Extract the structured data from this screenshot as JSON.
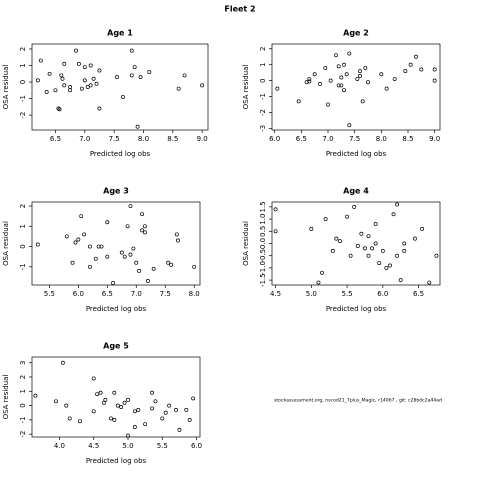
{
  "title": "Fleet 2",
  "footnote": "stockassessment.org, nscod21_7plus_Magic, r14067 , git: c28bdc2a44ad",
  "chart_data": [
    {
      "type": "scatter",
      "title": "Age 1",
      "xlabel": "Predicted log obs",
      "ylabel": "OSA residual",
      "xlim": [
        6.1,
        9.1
      ],
      "ylim": [
        -2.9,
        2.3
      ],
      "xticks": [
        6.5,
        {
          "value": 7,
          "label": "7.0"
        },
        7.5,
        {
          "value": 8,
          "label": "8.0"
        },
        8.5,
        {
          "value": 9,
          "label": "9.0"
        }
      ],
      "yticks": [
        -2,
        -1,
        0,
        1,
        2
      ],
      "x": [
        6.2,
        6.25,
        6.35,
        6.4,
        6.5,
        6.55,
        6.57,
        6.6,
        6.62,
        6.65,
        6.65,
        6.75,
        6.75,
        6.85,
        6.9,
        6.95,
        7.0,
        7.0,
        7.05,
        7.1,
        7.1,
        7.15,
        7.2,
        7.25,
        7.25,
        7.55,
        7.65,
        7.8,
        7.85,
        7.8,
        7.95,
        7.9,
        8.1,
        8.6,
        8.7,
        9.0
      ],
      "values": [
        0.1,
        1.3,
        -0.6,
        0.5,
        -0.5,
        -1.6,
        -1.65,
        0.4,
        0.2,
        1.1,
        -0.2,
        -0.3,
        -0.5,
        1.9,
        1.1,
        -0.4,
        0.9,
        0.1,
        -0.3,
        1.0,
        -0.2,
        0.2,
        -0.1,
        -1.6,
        0.7,
        0.3,
        -0.9,
        1.9,
        0.9,
        0.4,
        0.3,
        -2.7,
        0.6,
        -0.4,
        0.4,
        -0.2
      ]
    },
    {
      "type": "scatter",
      "title": "Age 2",
      "xlabel": "Predicted log obs",
      "ylabel": "OSA residual",
      "xlim": [
        5.95,
        9.1
      ],
      "ylim": [
        -3.1,
        2.3
      ],
      "xticks": [
        {
          "value": 6,
          "label": "6.0"
        },
        6.5,
        {
          "value": 7,
          "label": "7.0"
        },
        7.5,
        {
          "value": 8,
          "label": "8.0"
        },
        8.5,
        {
          "value": 9,
          "label": "9.0"
        }
      ],
      "yticks": [
        -3,
        -2,
        -1,
        0,
        1,
        2
      ],
      "x": [
        6.05,
        6.45,
        6.6,
        6.65,
        6.65,
        6.75,
        6.85,
        6.95,
        7.0,
        7.05,
        7.15,
        7.2,
        7.2,
        7.25,
        7.25,
        7.3,
        7.3,
        7.35,
        7.4,
        7.4,
        7.55,
        7.6,
        7.6,
        7.65,
        7.7,
        7.75,
        8.0,
        8.1,
        8.25,
        8.45,
        8.55,
        8.65,
        8.75,
        9.0,
        9.0
      ],
      "values": [
        -0.5,
        -1.3,
        -0.1,
        0.1,
        -0.05,
        0.4,
        -0.2,
        0.8,
        -1.5,
        0.0,
        1.6,
        0.9,
        -0.3,
        -0.3,
        0.2,
        1.0,
        -0.6,
        0.4,
        1.7,
        -2.8,
        0.1,
        0.6,
        0.3,
        -1.3,
        0.8,
        -0.1,
        0.4,
        -0.5,
        0.1,
        0.6,
        1.0,
        1.5,
        0.7,
        0.7,
        0.0
      ]
    },
    {
      "type": "scatter",
      "title": "Age 3",
      "xlabel": "Predicted log obs",
      "ylabel": "OSA residual",
      "xlim": [
        5.2,
        8.1
      ],
      "ylim": [
        -1.9,
        2.2
      ],
      "xticks": [
        5.5,
        {
          "value": 6,
          "label": "6.0"
        },
        6.5,
        {
          "value": 7,
          "label": "7.0"
        },
        7.5,
        {
          "value": 8,
          "label": "8.0"
        }
      ],
      "yticks": [
        -1,
        0,
        1,
        2
      ],
      "x": [
        5.3,
        5.8,
        5.9,
        5.95,
        6.0,
        6.05,
        6.1,
        6.2,
        6.2,
        6.3,
        6.35,
        6.4,
        6.5,
        6.5,
        6.6,
        6.75,
        6.8,
        6.85,
        6.9,
        6.9,
        6.95,
        7.0,
        7.05,
        7.1,
        7.1,
        7.15,
        7.15,
        7.2,
        7.3,
        7.55,
        7.6,
        7.7,
        7.72,
        8.0
      ],
      "values": [
        0.1,
        0.5,
        -0.8,
        0.2,
        0.35,
        1.5,
        0.6,
        -1.0,
        0.0,
        -0.6,
        0.0,
        0.0,
        -0.5,
        1.2,
        -1.8,
        -0.3,
        -0.5,
        1.0,
        -0.4,
        2.0,
        -0.1,
        -0.8,
        -1.2,
        1.6,
        0.8,
        1.0,
        0.7,
        -1.7,
        -1.1,
        -0.8,
        -0.9,
        0.6,
        0.3,
        -1.0
      ]
    },
    {
      "type": "scatter",
      "title": "Age 4",
      "xlabel": "Predicted log obs",
      "ylabel": "OSA residual",
      "xlim": [
        4.45,
        6.8
      ],
      "ylim": [
        -1.7,
        1.7
      ],
      "xticks": [
        4.5,
        {
          "value": 5,
          "label": "5.0"
        },
        5.5,
        {
          "value": 6,
          "label": "6.0"
        },
        6.5
      ],
      "yticks": [
        -1.5,
        {
          "value": -1,
          "label": "-1.0"
        },
        -0.5,
        {
          "value": 0,
          "label": "0.0"
        },
        0.5,
        {
          "value": 1,
          "label": "1.0"
        },
        1.5
      ],
      "x": [
        4.5,
        4.5,
        5.0,
        5.1,
        5.15,
        5.2,
        5.3,
        5.35,
        5.4,
        5.5,
        5.55,
        5.6,
        5.65,
        5.7,
        5.75,
        5.8,
        5.8,
        5.85,
        5.9,
        5.9,
        5.95,
        6.0,
        6.05,
        6.1,
        6.15,
        6.2,
        6.2,
        6.25,
        6.3,
        6.3,
        6.45,
        6.55,
        6.65,
        6.75
      ],
      "values": [
        1.4,
        0.5,
        0.6,
        -1.6,
        -1.2,
        1.0,
        -0.3,
        0.2,
        0.1,
        1.1,
        -0.5,
        1.5,
        -0.1,
        0.4,
        -0.2,
        -0.5,
        0.3,
        -0.2,
        0.8,
        0.0,
        -0.8,
        -0.3,
        -1.0,
        -0.9,
        1.2,
        1.6,
        -0.5,
        -1.5,
        -0.3,
        0.0,
        0.2,
        0.6,
        -1.6,
        -0.5
      ]
    },
    {
      "type": "scatter",
      "title": "Age 5",
      "xlabel": "Predicted log obs",
      "ylabel": "OSA residual",
      "xlim": [
        3.6,
        6.05
      ],
      "ylim": [
        -2.2,
        3.4
      ],
      "xticks": [
        {
          "value": 4,
          "label": "4.0"
        },
        4.5,
        {
          "value": 5,
          "label": "5.0"
        },
        5.5,
        {
          "value": 6,
          "label": "6.0"
        }
      ],
      "yticks": [
        -2,
        -1,
        0,
        1,
        2,
        3
      ],
      "x": [
        3.65,
        3.95,
        4.05,
        4.1,
        4.15,
        4.3,
        4.5,
        4.5,
        4.55,
        4.6,
        4.65,
        4.67,
        4.75,
        4.8,
        4.8,
        4.85,
        4.9,
        4.95,
        5.0,
        5.0,
        5.1,
        5.1,
        5.15,
        5.25,
        5.35,
        5.35,
        5.4,
        5.5,
        5.55,
        5.6,
        5.7,
        5.75,
        5.85,
        5.9,
        5.95
      ],
      "values": [
        0.7,
        0.3,
        3.0,
        0.0,
        -0.9,
        -1.1,
        1.9,
        -0.4,
        0.8,
        0.9,
        0.2,
        0.4,
        -0.9,
        -1.0,
        0.9,
        0.0,
        -0.1,
        0.2,
        -2.1,
        0.4,
        -1.5,
        -0.4,
        -0.3,
        -1.3,
        0.9,
        -0.2,
        0.3,
        -0.9,
        -0.5,
        0.0,
        -0.3,
        -1.7,
        -0.3,
        -1.0,
        0.5
      ]
    }
  ]
}
